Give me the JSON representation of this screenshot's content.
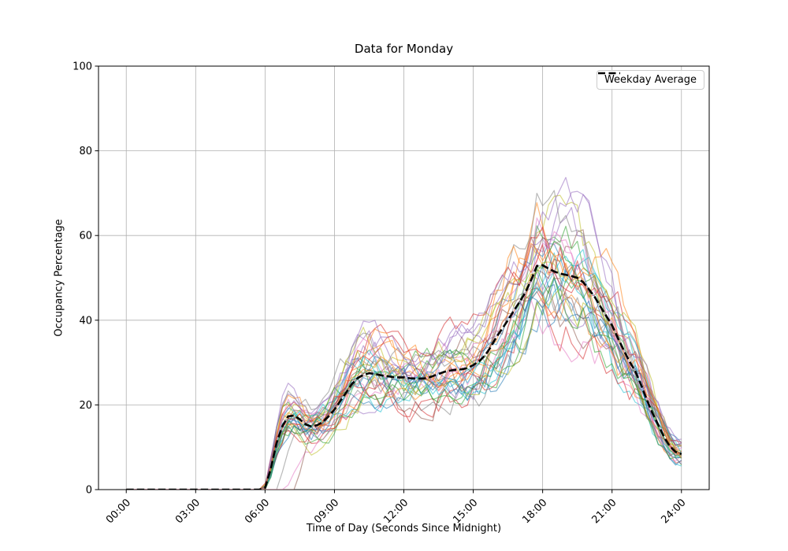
{
  "chart_data": {
    "type": "line",
    "title": "Data for Monday",
    "xlabel": "Time of Day (Seconds Since Midnight)",
    "ylabel": "Occupancy Percentage",
    "grid": true,
    "legend": {
      "entries": [
        "Weekday Average"
      ],
      "position": "upper right"
    },
    "ylim": [
      0,
      100
    ],
    "xlim_hours": [
      -1.2,
      25.2
    ],
    "y_ticks": [
      0,
      20,
      40,
      60,
      80,
      100
    ],
    "x_ticks": {
      "hours": [
        0,
        3,
        6,
        9,
        12,
        15,
        18,
        21,
        24
      ],
      "labels": [
        "00:00",
        "03:00",
        "06:00",
        "09:00",
        "12:00",
        "15:00",
        "18:00",
        "21:00",
        "24:00"
      ],
      "rotation_deg": 45
    },
    "axis_colors": {
      "grid": "#b0b0b0",
      "spine": "#000000",
      "text": "#000000"
    },
    "series": [
      {
        "name": "Weekday Average",
        "role": "average",
        "color": "#000000",
        "line_style": "dashed",
        "line_width": 2.6,
        "x_start_hour": 0,
        "x_step_hours": 0.25,
        "values": [
          0,
          0,
          0,
          0,
          0,
          0,
          0,
          0,
          0,
          0,
          0,
          0,
          0,
          0,
          0,
          0,
          0,
          0,
          0,
          0,
          0,
          0,
          0,
          0,
          0.4,
          5,
          11,
          15,
          17.3,
          17.5,
          16.6,
          15.4,
          14.9,
          15.2,
          16,
          17.3,
          18.9,
          20.9,
          22.9,
          24.9,
          26.3,
          27.1,
          27.5,
          27.3,
          27,
          26.8,
          26.6,
          26.5,
          26.5,
          26.3,
          26.2,
          26.2,
          26.3,
          26.8,
          27.3,
          27.8,
          28.1,
          28.3,
          28.4,
          28.7,
          29.4,
          30.3,
          31.6,
          33.6,
          36,
          38,
          40,
          42.2,
          44.3,
          46.5,
          49.5,
          52.8,
          53,
          52.2,
          51.5,
          51,
          50.7,
          50.4,
          50,
          49,
          47.3,
          45.5,
          43.2,
          41,
          38.8,
          35.8,
          33,
          30.3,
          28,
          24.8,
          21.3,
          18,
          15.3,
          12.4,
          10.2,
          8.9,
          8.4
        ]
      }
    ],
    "ensemble": {
      "role": "individual-day-traces",
      "count": 35,
      "alpha": 0.55,
      "line_width": 1.2,
      "colors": [
        "#1f77b4",
        "#ff7f0e",
        "#2ca02c",
        "#d62728",
        "#9467bd",
        "#8c564b",
        "#e377c2",
        "#7f7f7f",
        "#bcbd22",
        "#17becf"
      ],
      "behavior": "all traces flat at 0 from 00:00 to ~06:00, sharp rise at 06:00 to 10-25, noisy dip ~08:00, plateau spread ~15-40 through 15:00, evening peak spread ~36-70 between 17:00 and 19:30, decline to ~2-20 by 24:00",
      "generation": {
        "seed": 11,
        "scale_range": [
          0.78,
          1.28
        ],
        "walk_decay": 0.55,
        "walk_step": 7,
        "mod_amp_range": [
          0.06,
          0.16
        ],
        "delayed_start_lines": {
          "7": 0.5,
          "16": 0.9,
          "25": 1.3
        }
      }
    }
  }
}
